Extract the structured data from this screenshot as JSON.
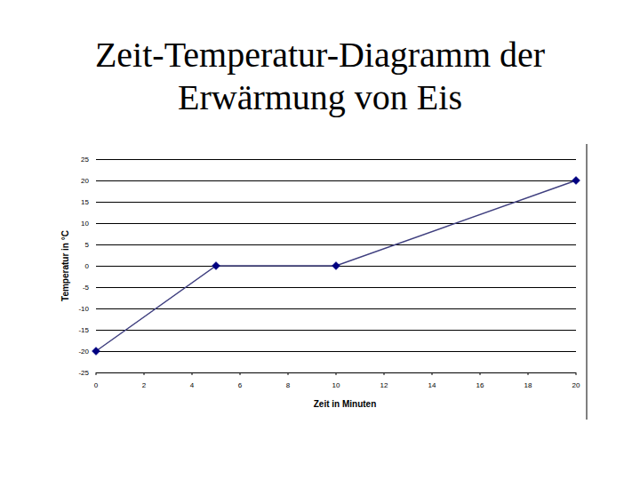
{
  "chart_data": {
    "type": "line",
    "title": "Zeit-Temperatur-Diagramm der Erwärmung von Eis",
    "x_label": "Zeit in Minuten",
    "y_label": "Temperatur in °C",
    "x": [
      0,
      5,
      10,
      20
    ],
    "values": [
      -20,
      0,
      0,
      20
    ],
    "color": "#3f3f7f",
    "marker": "diamond",
    "xlim": [
      0,
      20
    ],
    "xticks": [
      0,
      2,
      4,
      6,
      8,
      10,
      12,
      14,
      16,
      18,
      20
    ],
    "ylim": [
      -25,
      25
    ],
    "yticks": [
      -25,
      -20,
      -15,
      -10,
      -5,
      0,
      5,
      10,
      15,
      20,
      25
    ],
    "grid": true
  }
}
